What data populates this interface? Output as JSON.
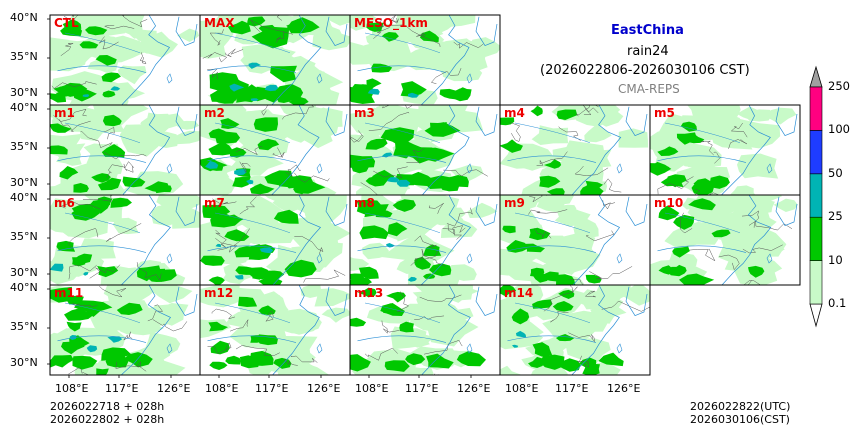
{
  "header": {
    "region": "EastChina",
    "variable": "rain24",
    "period": "(2026022806-2026030106 CST)",
    "source": "CMA-REPS"
  },
  "panels": [
    {
      "label": "CTL",
      "density": 0.5
    },
    {
      "label": "MAX",
      "density": 0.95
    },
    {
      "label": "MESO_1km",
      "density": 0.55
    },
    {
      "label": "m1",
      "density": 0.4
    },
    {
      "label": "m2",
      "density": 0.75
    },
    {
      "label": "m3",
      "density": 0.8
    },
    {
      "label": "m4",
      "density": 0.35
    },
    {
      "label": "m5",
      "density": 0.4
    },
    {
      "label": "m6",
      "density": 0.6
    },
    {
      "label": "m7",
      "density": 0.7
    },
    {
      "label": "m8",
      "density": 0.6
    },
    {
      "label": "m9",
      "density": 0.35
    },
    {
      "label": "m10",
      "density": 0.45
    },
    {
      "label": "m11",
      "density": 0.7
    },
    {
      "label": "m12",
      "density": 0.4
    },
    {
      "label": "m13",
      "density": 0.45
    },
    {
      "label": "m14",
      "density": 0.6
    }
  ],
  "axes": {
    "lat_labels": [
      "40°N",
      "35°N",
      "30°N"
    ],
    "lon_labels": [
      "108°E",
      "117°E",
      "126°E"
    ]
  },
  "colorbar": {
    "levels": [
      "0.1",
      "10",
      "25",
      "50",
      "100",
      "250"
    ],
    "colors": [
      "#c8fac8",
      "#00c800",
      "#00b4b4",
      "#1e3cff",
      "#ff0080"
    ],
    "over_color": "#a0a0a0"
  },
  "footer": {
    "init_utc": "2026022718  +  028h",
    "init_cst": "2026022802  +  028h",
    "valid_utc": "2026022822(UTC)",
    "valid_cst": "2026030106(CST)"
  },
  "colors": {
    "panel_label": "#ee0000",
    "light_rain": "#c8fac8",
    "moderate_rain": "#00c800",
    "heavy_rain": "#00b4b4",
    "river": "#2a8fd6",
    "border": "#555555"
  }
}
